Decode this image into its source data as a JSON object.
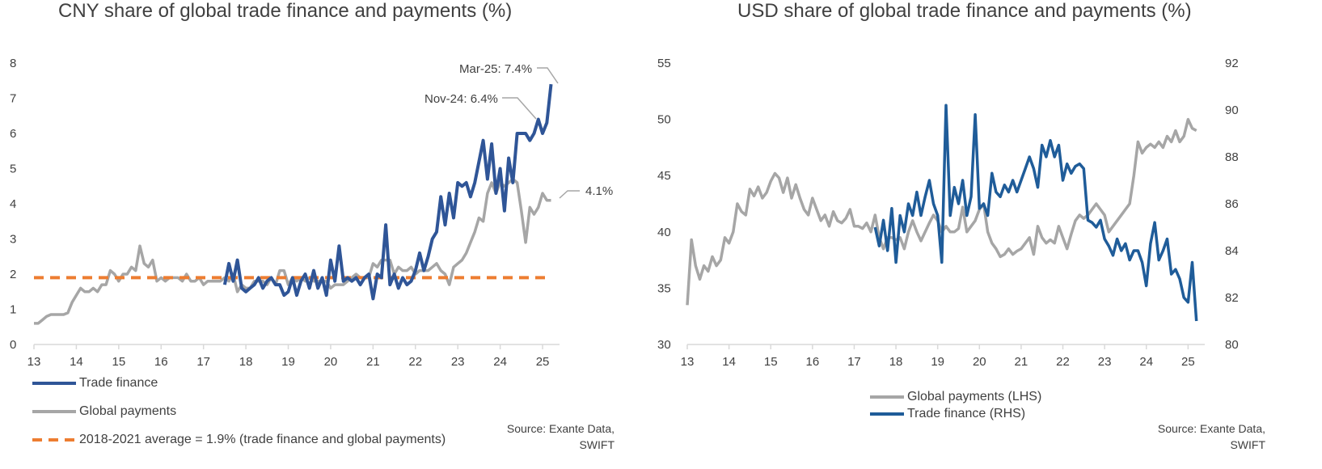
{
  "left": {
    "title": "CNY share of global trade finance and payments (%)",
    "source": "Source: Exante Data, SWIFT",
    "legend": {
      "trade": "Trade finance",
      "payments": "Global payments",
      "average": "2018-2021 average = 1.9% (trade finance and global payments)"
    },
    "annotations": {
      "mar25": "Mar-25: 7.4%",
      "nov24": "Nov-24: 6.4%",
      "last_payments": "4.1%"
    }
  },
  "right": {
    "title": "USD share of global trade finance and payments (%)",
    "source": "Source: Exante Data, SWIFT",
    "legend": {
      "payments": "Global payments (LHS)",
      "trade": "Trade finance (RHS)"
    }
  },
  "colors": {
    "trade": "#2f5597",
    "trade_right": "#1f5c99",
    "payments": "#a6a6a6",
    "average": "#ed7d31",
    "axis": "#d9d9d9"
  },
  "chart_data": [
    {
      "type": "line",
      "title": "CNY share of global trade finance and payments (%)",
      "x_ticks": [
        "13",
        "14",
        "15",
        "16",
        "17",
        "18",
        "19",
        "20",
        "21",
        "22",
        "23",
        "24",
        "25"
      ],
      "y_ticks": [
        "0",
        "1",
        "2",
        "3",
        "4",
        "5",
        "6",
        "7",
        "8"
      ],
      "ylim": [
        0,
        8
      ],
      "xlim": [
        13,
        25.4
      ],
      "series": [
        {
          "name": "Trade finance",
          "x": [
            17.5,
            17.6,
            17.7,
            17.8,
            17.9,
            18.0,
            18.1,
            18.2,
            18.3,
            18.4,
            18.5,
            18.6,
            18.7,
            18.8,
            18.9,
            19.0,
            19.1,
            19.2,
            19.3,
            19.4,
            19.5,
            19.6,
            19.7,
            19.8,
            19.9,
            20.0,
            20.1,
            20.2,
            20.3,
            20.4,
            20.5,
            20.6,
            20.7,
            20.8,
            20.9,
            21.0,
            21.1,
            21.2,
            21.3,
            21.4,
            21.5,
            21.6,
            21.7,
            21.8,
            21.9,
            22.0,
            22.1,
            22.2,
            22.3,
            22.4,
            22.5,
            22.6,
            22.7,
            22.8,
            22.9,
            23.0,
            23.1,
            23.2,
            23.3,
            23.4,
            23.5,
            23.6,
            23.7,
            23.8,
            23.9,
            24.0,
            24.1,
            24.2,
            24.3,
            24.4,
            24.5,
            24.6,
            24.7,
            24.8,
            24.9,
            25.0,
            25.1,
            25.2
          ],
          "values": [
            1.7,
            2.3,
            1.8,
            2.4,
            1.6,
            1.5,
            1.6,
            1.7,
            1.9,
            1.6,
            1.8,
            1.9,
            1.7,
            1.7,
            1.4,
            1.5,
            1.9,
            1.4,
            1.8,
            2.0,
            1.6,
            2.1,
            1.6,
            1.9,
            1.4,
            2.4,
            1.8,
            2.8,
            1.8,
            1.9,
            1.8,
            1.9,
            1.7,
            1.9,
            2.0,
            1.3,
            2.0,
            1.9,
            3.4,
            1.7,
            2.0,
            1.6,
            1.9,
            1.7,
            1.8,
            2.1,
            2.6,
            2.1,
            2.5,
            3.0,
            3.2,
            4.2,
            3.4,
            4.3,
            3.6,
            4.6,
            4.5,
            4.6,
            4.2,
            4.6,
            5.2,
            5.8,
            4.7,
            5.7,
            4.3,
            5.0,
            3.8,
            5.3,
            4.6,
            6.0,
            6.0,
            6.0,
            5.8,
            6.0,
            6.4,
            6.0,
            6.3,
            7.4
          ]
        },
        {
          "name": "Global payments",
          "x": [
            13.0,
            13.1,
            13.2,
            13.3,
            13.4,
            13.5,
            13.6,
            13.7,
            13.8,
            13.9,
            14.0,
            14.1,
            14.2,
            14.3,
            14.4,
            14.5,
            14.6,
            14.7,
            14.8,
            14.9,
            15.0,
            15.1,
            15.2,
            15.3,
            15.4,
            15.5,
            15.6,
            15.7,
            15.8,
            15.9,
            16.0,
            16.1,
            16.2,
            16.3,
            16.4,
            16.5,
            16.6,
            16.7,
            16.8,
            16.9,
            17.0,
            17.1,
            17.2,
            17.3,
            17.4,
            17.5,
            17.6,
            17.7,
            17.8,
            17.9,
            18.0,
            18.1,
            18.2,
            18.3,
            18.4,
            18.5,
            18.6,
            18.7,
            18.8,
            18.9,
            19.0,
            19.1,
            19.2,
            19.3,
            19.4,
            19.5,
            19.6,
            19.7,
            19.8,
            19.9,
            20.0,
            20.1,
            20.2,
            20.3,
            20.4,
            20.5,
            20.6,
            20.7,
            20.8,
            20.9,
            21.0,
            21.1,
            21.2,
            21.3,
            21.4,
            21.5,
            21.6,
            21.7,
            21.8,
            21.9,
            22.0,
            22.1,
            22.2,
            22.3,
            22.4,
            22.5,
            22.6,
            22.7,
            22.8,
            22.9,
            23.0,
            23.1,
            23.2,
            23.3,
            23.4,
            23.5,
            23.6,
            23.7,
            23.8,
            23.9,
            24.0,
            24.1,
            24.2,
            24.3,
            24.4,
            24.5,
            24.6,
            24.7,
            24.8,
            24.9,
            25.0,
            25.1,
            25.2
          ],
          "values": [
            0.6,
            0.6,
            0.7,
            0.8,
            0.85,
            0.85,
            0.85,
            0.85,
            0.9,
            1.2,
            1.4,
            1.6,
            1.5,
            1.5,
            1.6,
            1.5,
            1.7,
            1.7,
            2.1,
            2.0,
            1.8,
            2.0,
            2.0,
            2.2,
            2.1,
            2.8,
            2.3,
            2.2,
            2.4,
            1.8,
            1.9,
            1.8,
            1.9,
            1.9,
            1.9,
            1.8,
            2.0,
            1.8,
            1.8,
            1.9,
            1.7,
            1.8,
            1.8,
            1.8,
            1.8,
            1.9,
            1.8,
            2.0,
            1.5,
            1.7,
            1.6,
            1.6,
            1.8,
            1.8,
            1.8,
            1.7,
            1.9,
            1.7,
            2.1,
            2.1,
            1.7,
            1.9,
            1.8,
            1.9,
            1.8,
            1.9,
            1.8,
            1.8,
            1.8,
            1.8,
            1.6,
            1.7,
            1.7,
            1.7,
            1.8,
            1.9,
            2.0,
            1.9,
            1.9,
            1.9,
            2.3,
            2.2,
            2.4,
            2.4,
            2.4,
            2.0,
            2.2,
            2.1,
            2.1,
            2.2,
            2.0,
            2.1,
            2.1,
            2.1,
            2.2,
            2.3,
            2.1,
            2.0,
            1.7,
            2.2,
            2.3,
            2.4,
            2.6,
            2.9,
            3.2,
            3.6,
            3.5,
            4.3,
            4.6,
            4.3,
            4.6,
            4.5,
            4.6,
            4.7,
            4.6,
            3.8,
            2.9,
            3.9,
            3.7,
            3.9,
            4.3,
            4.1,
            4.1
          ]
        },
        {
          "name": "2018-2021 average = 1.9% (trade finance and global payments)",
          "x": [
            13.0,
            25.2
          ],
          "values": [
            1.9,
            1.9
          ]
        }
      ]
    },
    {
      "type": "line",
      "title": "USD share of global trade finance and payments (%)",
      "x_ticks": [
        "13",
        "14",
        "15",
        "16",
        "17",
        "18",
        "19",
        "20",
        "21",
        "22",
        "23",
        "24",
        "25"
      ],
      "y_ticks_left": [
        "30",
        "35",
        "40",
        "45",
        "50",
        "55"
      ],
      "y_ticks_right": [
        "80",
        "82",
        "84",
        "86",
        "88",
        "90",
        "92"
      ],
      "ylim_left": [
        30,
        55
      ],
      "ylim_right": [
        80,
        92
      ],
      "xlim": [
        13,
        25.4
      ],
      "series": [
        {
          "name": "Global payments (LHS)",
          "axis": "left",
          "x": [
            13.0,
            13.1,
            13.2,
            13.3,
            13.4,
            13.5,
            13.6,
            13.7,
            13.8,
            13.9,
            14.0,
            14.1,
            14.2,
            14.3,
            14.4,
            14.5,
            14.6,
            14.7,
            14.8,
            14.9,
            15.0,
            15.1,
            15.2,
            15.3,
            15.4,
            15.5,
            15.6,
            15.7,
            15.8,
            15.9,
            16.0,
            16.1,
            16.2,
            16.3,
            16.4,
            16.5,
            16.6,
            16.7,
            16.8,
            16.9,
            17.0,
            17.1,
            17.2,
            17.3,
            17.4,
            17.5,
            17.6,
            17.7,
            17.8,
            17.9,
            18.0,
            18.1,
            18.2,
            18.3,
            18.4,
            18.5,
            18.6,
            18.7,
            18.8,
            18.9,
            19.0,
            19.1,
            19.2,
            19.3,
            19.4,
            19.5,
            19.6,
            19.7,
            19.8,
            19.9,
            20.0,
            20.1,
            20.2,
            20.3,
            20.4,
            20.5,
            20.6,
            20.7,
            20.8,
            20.9,
            21.0,
            21.1,
            21.2,
            21.3,
            21.4,
            21.5,
            21.6,
            21.7,
            21.8,
            21.9,
            22.0,
            22.1,
            22.2,
            22.3,
            22.4,
            22.5,
            22.6,
            22.7,
            22.8,
            22.9,
            23.0,
            23.1,
            23.2,
            23.3,
            23.4,
            23.5,
            23.6,
            23.7,
            23.8,
            23.9,
            24.0,
            24.1,
            24.2,
            24.3,
            24.4,
            24.5,
            24.6,
            24.7,
            24.8,
            24.9,
            25.0,
            25.1,
            25.2
          ],
          "values": [
            33.5,
            39.3,
            37.0,
            35.8,
            37.0,
            36.5,
            37.8,
            37.0,
            37.5,
            39.5,
            39.0,
            40.0,
            42.5,
            41.8,
            41.5,
            43.8,
            43.2,
            44.0,
            43.0,
            43.5,
            44.5,
            45.2,
            44.8,
            43.5,
            44.8,
            43.0,
            44.2,
            43.0,
            42.0,
            41.5,
            43.0,
            42.0,
            41.0,
            41.5,
            40.5,
            41.8,
            41.0,
            40.8,
            41.2,
            42.0,
            40.5,
            40.5,
            40.3,
            40.8,
            40.0,
            41.5,
            39.5,
            38.5,
            39.5,
            39.5,
            39.3,
            39.5,
            38.5,
            40.0,
            41.0,
            40.0,
            39.2,
            40.0,
            40.8,
            41.5,
            41.0,
            40.0,
            40.5,
            40.0,
            40.0,
            40.3,
            42.2,
            40.0,
            40.5,
            41.0,
            42.0,
            42.5,
            40.0,
            39.0,
            38.5,
            37.8,
            38.0,
            38.5,
            38.0,
            38.3,
            38.5,
            39.0,
            39.5,
            38.0,
            40.5,
            39.5,
            39.0,
            39.3,
            39.0,
            40.5,
            39.5,
            38.5,
            39.8,
            41.0,
            41.5,
            41.2,
            41.5,
            42.0,
            42.5,
            42.0,
            41.5,
            40.0,
            40.5,
            41.0,
            41.5,
            42.0,
            42.5,
            45.0,
            48.0,
            47.0,
            47.5,
            47.8,
            47.5,
            48.0,
            47.5,
            48.5,
            48.0,
            49.0,
            48.0,
            48.5,
            50.0,
            49.2,
            49.0
          ]
        },
        {
          "name": "Trade finance (RHS)",
          "axis": "right",
          "x": [
            17.5,
            17.6,
            17.7,
            17.8,
            17.9,
            18.0,
            18.1,
            18.2,
            18.3,
            18.4,
            18.5,
            18.6,
            18.7,
            18.8,
            18.9,
            19.0,
            19.1,
            19.2,
            19.3,
            19.4,
            19.5,
            19.6,
            19.7,
            19.8,
            19.9,
            20.0,
            20.1,
            20.2,
            20.3,
            20.4,
            20.5,
            20.6,
            20.7,
            20.8,
            20.9,
            21.0,
            21.1,
            21.2,
            21.3,
            21.4,
            21.5,
            21.6,
            21.7,
            21.8,
            21.9,
            22.0,
            22.1,
            22.2,
            22.3,
            22.4,
            22.5,
            22.6,
            22.7,
            22.8,
            22.9,
            23.0,
            23.1,
            23.2,
            23.3,
            23.4,
            23.5,
            23.6,
            23.7,
            23.8,
            23.9,
            24.0,
            24.1,
            24.2,
            24.3,
            24.4,
            24.5,
            24.6,
            24.7,
            24.8,
            24.9,
            25.0,
            25.1,
            25.2
          ],
          "values": [
            85.0,
            84.2,
            85.3,
            84.0,
            85.8,
            83.5,
            85.5,
            84.8,
            86.0,
            85.5,
            86.5,
            85.5,
            86.3,
            87.0,
            86.0,
            85.5,
            83.5,
            90.2,
            85.5,
            86.7,
            86.0,
            87.0,
            85.5,
            86.3,
            89.8,
            85.8,
            86.0,
            85.5,
            87.3,
            86.5,
            86.3,
            86.8,
            86.5,
            87.0,
            86.5,
            87.0,
            87.5,
            88.0,
            87.5,
            86.7,
            88.5,
            88.0,
            88.7,
            88.0,
            88.5,
            87.0,
            87.7,
            87.3,
            87.6,
            87.7,
            87.5,
            85.3,
            85.2,
            85.0,
            85.3,
            84.5,
            84.2,
            83.8,
            84.5,
            84.0,
            84.3,
            83.6,
            84.0,
            84.0,
            83.5,
            82.5,
            84.3,
            85.2,
            83.6,
            84.0,
            84.5,
            83.0,
            83.2,
            82.8,
            82.0,
            81.8,
            83.5,
            81.0
          ]
        }
      ]
    }
  ]
}
